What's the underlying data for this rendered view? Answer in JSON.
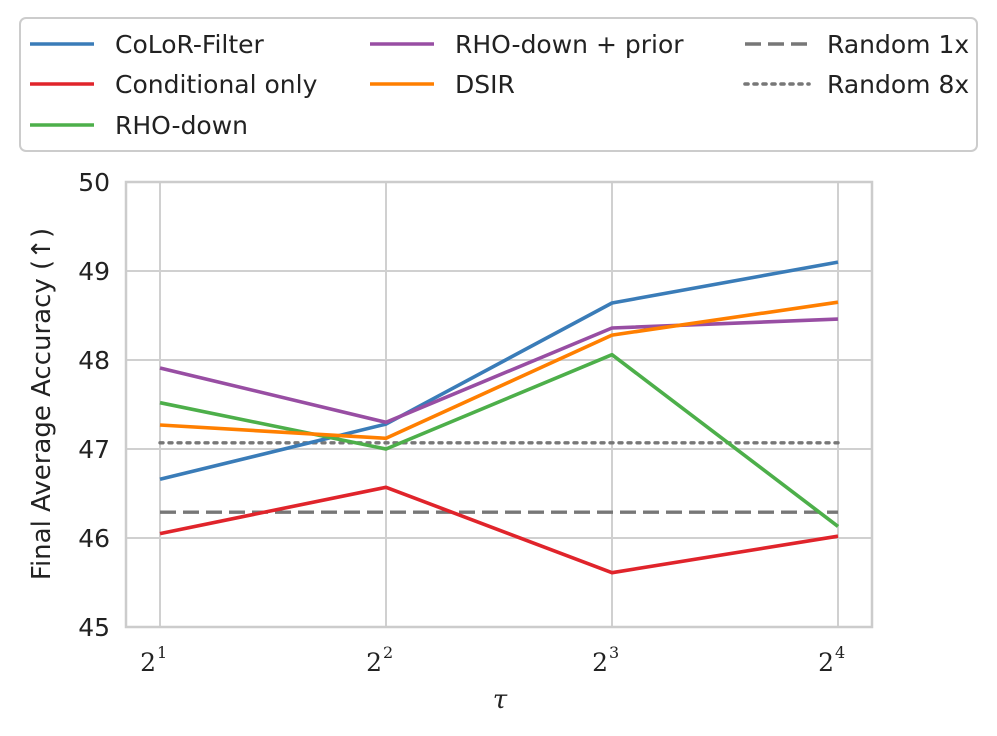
{
  "chart_data": {
    "type": "line",
    "xlabel": "τ",
    "ylabel": "Final Average Accuracy (↑)",
    "x_base": "2",
    "x_exponents": [
      "1",
      "2",
      "3",
      "4"
    ],
    "ylim": [
      45,
      50
    ],
    "yticks": [
      "45",
      "46",
      "47",
      "48",
      "49",
      "50"
    ],
    "grid": true,
    "legend_position": "top",
    "series": [
      {
        "name": "CoLoR-Filter",
        "color": "#3a7cb8",
        "style": "solid",
        "values": [
          46.66,
          47.28,
          48.64,
          49.1
        ]
      },
      {
        "name": "Conditional only",
        "color": "#e0242b",
        "style": "solid",
        "values": [
          46.05,
          46.57,
          45.61,
          46.02
        ]
      },
      {
        "name": "RHO-down",
        "color": "#4daf4a",
        "style": "solid",
        "values": [
          47.52,
          47.0,
          48.06,
          46.13
        ]
      },
      {
        "name": "RHO-down + prior",
        "color": "#984ea3",
        "style": "solid",
        "values": [
          47.91,
          47.3,
          48.36,
          48.46
        ]
      },
      {
        "name": "DSIR",
        "color": "#ff7f00",
        "style": "solid",
        "values": [
          47.27,
          47.12,
          48.28,
          48.65
        ]
      },
      {
        "name": "Random 1x",
        "color": "#777777",
        "style": "dashed",
        "values": [
          46.29,
          46.29,
          46.29,
          46.29
        ]
      },
      {
        "name": "Random 8x",
        "color": "#777777",
        "style": "dotted",
        "values": [
          47.07,
          47.07,
          47.07,
          47.07
        ]
      }
    ]
  }
}
